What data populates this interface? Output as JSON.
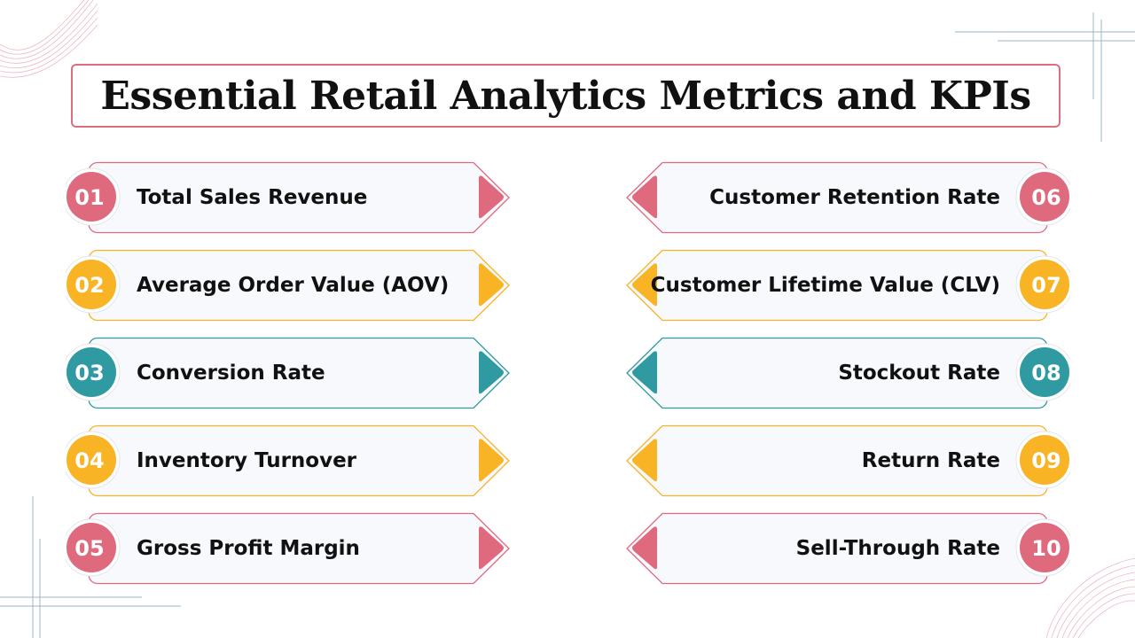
{
  "title": "Essential Retail Analytics Metrics and KPIs",
  "colors": {
    "pink": "#df6a7d",
    "yellow": "#f8b424",
    "teal": "#2f9aa2",
    "title_border": "#dc6e80"
  },
  "left_items": [
    {
      "number": "01",
      "label": "Total Sales Revenue",
      "color": "pink"
    },
    {
      "number": "02",
      "label": "Average Order Value (AOV)",
      "color": "yellow"
    },
    {
      "number": "03",
      "label": "Conversion Rate",
      "color": "teal"
    },
    {
      "number": "04",
      "label": "Inventory Turnover",
      "color": "yellow"
    },
    {
      "number": "05",
      "label": "Gross Profit Margin",
      "color": "pink"
    }
  ],
  "right_items": [
    {
      "number": "06",
      "label": "Customer Retention Rate",
      "color": "pink"
    },
    {
      "number": "07",
      "label": "Customer Lifetime Value (CLV)",
      "color": "yellow"
    },
    {
      "number": "08",
      "label": "Stockout Rate",
      "color": "teal"
    },
    {
      "number": "09",
      "label": "Return Rate",
      "color": "yellow"
    },
    {
      "number": "10",
      "label": "Sell-Through Rate",
      "color": "pink"
    }
  ]
}
